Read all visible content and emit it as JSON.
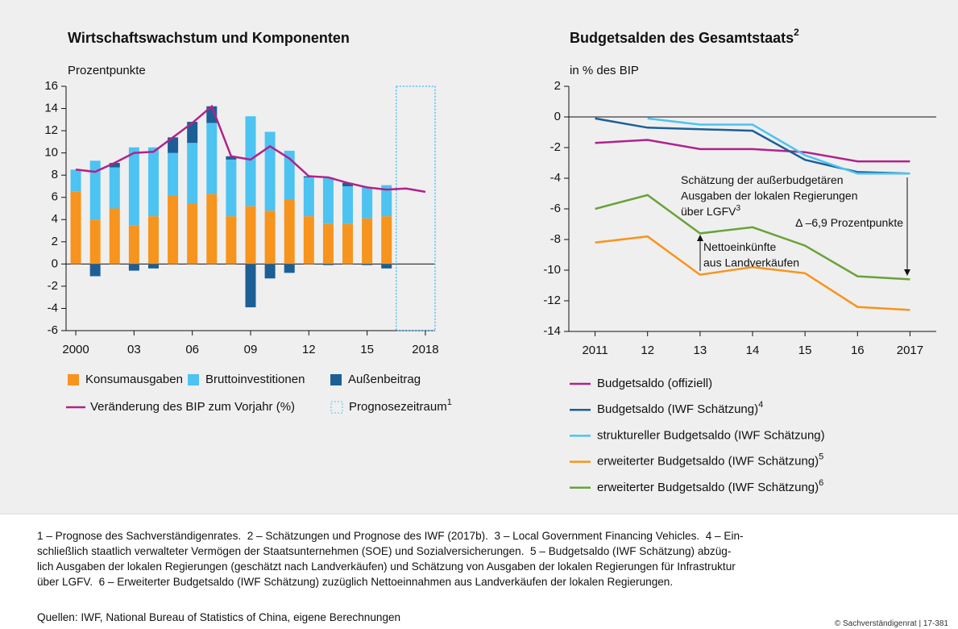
{
  "chart_data": [
    {
      "type": "bar",
      "stacked": true,
      "title": "Wirtschaftswachstum und Komponenten",
      "y_label": "Prozentpunkte",
      "categories": [
        "2000",
        null,
        null,
        "03",
        null,
        null,
        "06",
        null,
        null,
        "09",
        null,
        null,
        "12",
        null,
        null,
        "15",
        null,
        null,
        "2018"
      ],
      "series": [
        {
          "name": "Konsumausgaben",
          "color": "#f7941d",
          "values": [
            6.5,
            4.0,
            5.0,
            3.5,
            4.3,
            6.2,
            5.4,
            6.3,
            4.3,
            5.2,
            4.8,
            5.8,
            4.3,
            3.6,
            3.6,
            4.1,
            4.3,
            null,
            null
          ]
        },
        {
          "name": "Bruttoinvestitionen",
          "color": "#4dc3f2",
          "values": [
            2.0,
            5.3,
            3.7,
            7.0,
            6.2,
            3.8,
            5.5,
            6.4,
            5.1,
            8.1,
            7.1,
            4.4,
            3.5,
            4.2,
            3.4,
            2.8,
            2.8,
            null,
            null
          ]
        },
        {
          "name": "Außenbeitrag",
          "color": "#1b5f96",
          "values": [
            0,
            -1.1,
            0.4,
            -0.6,
            -0.4,
            1.4,
            1.9,
            1.5,
            0.3,
            -3.9,
            -1.3,
            -0.8,
            0.1,
            -0.1,
            0.3,
            -0.1,
            -0.4,
            null,
            null
          ]
        },
        {
          "name": "Veränderung des BIP zum Vorjahr (%)",
          "type": "line",
          "color": "#b0238b",
          "values": [
            8.5,
            8.3,
            9.1,
            10.0,
            10.1,
            11.4,
            12.7,
            14.2,
            9.7,
            9.4,
            10.6,
            9.5,
            7.9,
            7.8,
            7.3,
            6.9,
            6.7,
            6.8,
            6.5
          ]
        }
      ],
      "forecast_label": "Prognosezeitraum",
      "forecast_note": "1",
      "forecast_color": "#4dc3f2",
      "ylim": [
        -6,
        16
      ],
      "yticks": [
        -6,
        -4,
        -2,
        0,
        2,
        4,
        6,
        8,
        10,
        12,
        14,
        16
      ]
    },
    {
      "type": "line",
      "title": "Budgetsalden des Gesamtstaats",
      "title_note": "2",
      "y_label": "in % des BIP",
      "categories": [
        "2011",
        "12",
        "13",
        "14",
        "15",
        "16",
        "2017"
      ],
      "series": [
        {
          "name": "Budgetsaldo (offiziell)",
          "color": "#b0238b",
          "values": [
            -1.7,
            -1.5,
            -2.1,
            -2.1,
            -2.3,
            -2.9,
            -2.9
          ]
        },
        {
          "name": "Budgetsaldo (IWF Schätzung)",
          "note": "4",
          "color": "#1b5f96",
          "values": [
            -0.1,
            -0.7,
            -0.8,
            -0.9,
            -2.8,
            -3.6,
            -3.7
          ]
        },
        {
          "name": "struktureller Budgetsaldo (IWF Schätzung)",
          "color": "#4dc3f2",
          "values": [
            null,
            -0.1,
            -0.5,
            -0.5,
            -2.5,
            -3.7,
            -3.7
          ]
        },
        {
          "name": "erweiterter Budgetsaldo (IWF Schätzung)",
          "note": "5",
          "color": "#f7941d",
          "values": [
            -8.2,
            -7.8,
            -10.3,
            -9.8,
            -10.2,
            -12.4,
            -12.6
          ]
        },
        {
          "name": "erweiterter Budgetsaldo (IWF Schätzung)",
          "note": "6",
          "color": "#6aa23a",
          "values": [
            -6.0,
            -5.1,
            -7.6,
            -7.2,
            -8.4,
            -10.4,
            -10.6
          ]
        }
      ],
      "annotations": [
        {
          "lines": [
            "Schätzung der außerbudgetären",
            "Ausgaben der lokalen Regierungen",
            "über LGFV"
          ],
          "note": "3"
        },
        {
          "lines": [
            "Δ –6,9 Prozentpunkte"
          ]
        },
        {
          "lines": [
            "Nettoeinkünfte",
            "aus Landverkäufen"
          ]
        }
      ],
      "ylim": [
        -14,
        2
      ],
      "yticks": [
        -14,
        -12,
        -10,
        -8,
        -6,
        -4,
        -2,
        0,
        2
      ]
    }
  ],
  "footnotes": [
    "1 – Prognose des Sachverständigenrates.  2 – Schätzungen und Prognose des IWF (2017b).  3 – Local Government Financing Vehicles.  4 – Ein-",
    "schließlich staatlich verwalteter Vermögen der Staatsunternehmen (SOE) und Sozialversicherungen.  5 – Budgetsaldo (IWF Schätzung) abzüg-",
    "lich Ausgaben der lokalen Regierungen (geschätzt nach Landverkäufen) und Schätzung von Ausgaben der lokalen Regierungen für Infrastruktur",
    "über LGFV.  6 – Erweiterter Budgetsaldo (IWF Schätzung) zuzüglich Nettoeinnahmen aus Landverkäufen der lokalen Regierungen."
  ],
  "source": "Quellen: IWF, National Bureau of Statistics of China, eigene Berechnungen",
  "copyright": "© Sachverständigenrat | 17-381"
}
